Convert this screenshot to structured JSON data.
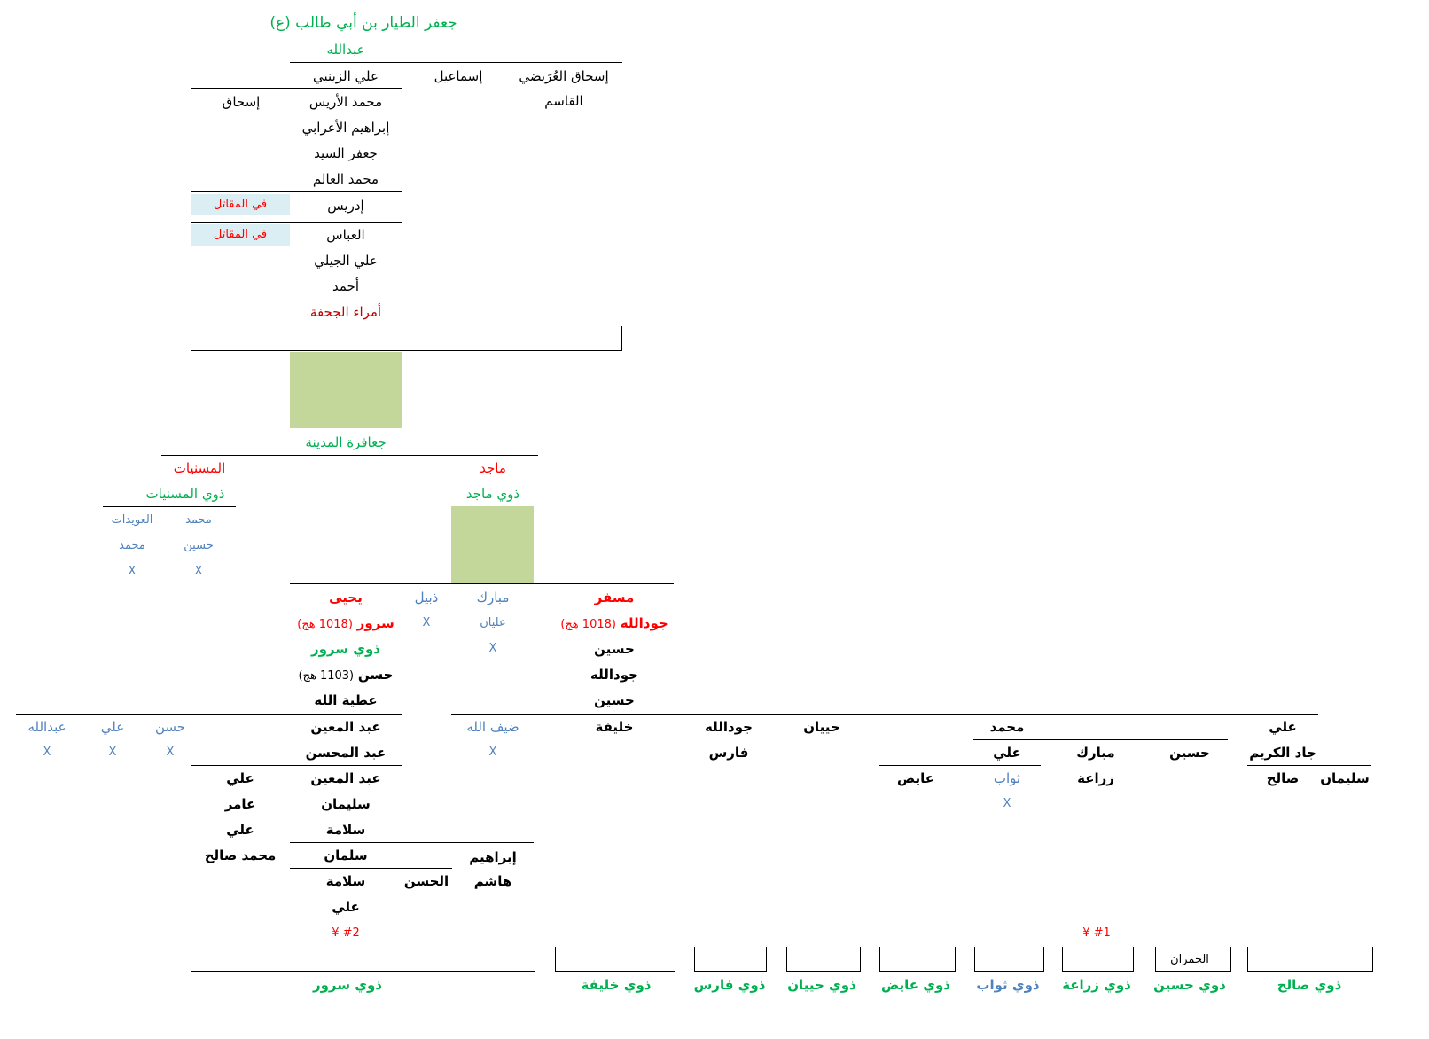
{
  "colors": {
    "green": "#00b050",
    "red": "#ff0000",
    "dark_red": "#c00000",
    "blue": "#4f81bd",
    "box_fill": "#c4d79b",
    "note_fill": "#daeef3"
  },
  "top": {
    "root": "جعفر الطيار بن أبي طالب (ع)",
    "son": "عبدالله",
    "children": [
      "علي الزينبي",
      "إسماعيل",
      "إسحاق العُرَيضي"
    ],
    "qasim": "القاسم"
  },
  "zainabi": {
    "ishaq": "إسحاق",
    "line": [
      "محمد الأريس",
      "إبراهيم الأعرابي",
      "جعفر السيد",
      "محمد العالم"
    ],
    "idris": "إدريس",
    "abbas": "العباس",
    "note": "في المقاتل",
    "lower": [
      "علي  الجيلي",
      "أحمد"
    ],
    "emirs": "أمراء الجحفة"
  },
  "madina": {
    "label": "جعافرة المدينة",
    "musanniyat": "المسنيات",
    "dhawi_musanniyat": "ذوي المسنيات",
    "majid": "ماجد",
    "dhawi_majid": "ذوي ماجد",
    "musanniyat_cols": [
      {
        "items": [
          "محمد",
          "حسين",
          "X"
        ]
      },
      {
        "items": [
          "العويدات",
          "محمد",
          "X"
        ]
      }
    ]
  },
  "majid_children": {
    "yahya": "يحيى",
    "surur": "سرور",
    "surur_date": "(1018 هج)",
    "dhawi_surur": "ذوي سرور",
    "hasan": "حسن",
    "hasan_date": "(1103 هج)",
    "atiyya": "عطية الله",
    "dhubayl": "ذبيل",
    "dhubayl_x": "X",
    "mubarak": "مبارك",
    "alyan": "عليان",
    "alyan_x": "X",
    "musfir": "مسفر",
    "jawdallah": "جودالله",
    "jawdallah_date": "(1018 هج)",
    "musfir_line": [
      "حسين",
      "جودالله",
      "حسين"
    ]
  },
  "surur_branch": {
    "left_sons": [
      {
        "name": "حسن",
        "mark": "X"
      },
      {
        "name": "علي",
        "mark": "X"
      },
      {
        "name": "عبدالله",
        "mark": "X"
      }
    ],
    "col1": [
      "عبد المعين",
      "عبد المحسن"
    ],
    "col2": [
      "عبد المعين",
      "سليمان",
      "سلامة"
    ],
    "col2_side": [
      "علي",
      "عامر",
      "علي",
      "محمد صالح"
    ],
    "salman": "سلمان",
    "salama": "سلامة",
    "ali": "علي",
    "hasan2": "الحسن",
    "ibrahim": "إبراهيم",
    "hashim": "هاشم",
    "ref2": "¥ #2"
  },
  "musfir_branch": {
    "dayfallah": "ضيف الله",
    "dayfallah_x": "X",
    "khalifa": "خليفة",
    "jawdallah": "جودالله",
    "faris": "فارس",
    "hayyan": "حييان",
    "muhammad": "محمد",
    "ali": "علي",
    "ayid": "عايض",
    "thawab": "ثواب",
    "thawab_x": "X",
    "mubarak": "مبارك",
    "ziraa": "زراعة",
    "husayn": "حسين",
    "ali_top": "علي",
    "jad_karim": "جاد الكريم",
    "salih": "صالح",
    "sulayman": "سليمان",
    "ref1": "¥ #1"
  },
  "clans": {
    "surur": "ذوي سرور",
    "khalifa": "ذوي خليفة",
    "faris": "ذوي فارس",
    "hayyan": "ذوي حييان",
    "ayid": "ذوي عايض",
    "thawab": "ذوي ثواب",
    "ziraa": "ذوي زراعة",
    "husayn": "ذوي حسين",
    "humran": "الحمران",
    "salih": "ذوي صالح"
  }
}
